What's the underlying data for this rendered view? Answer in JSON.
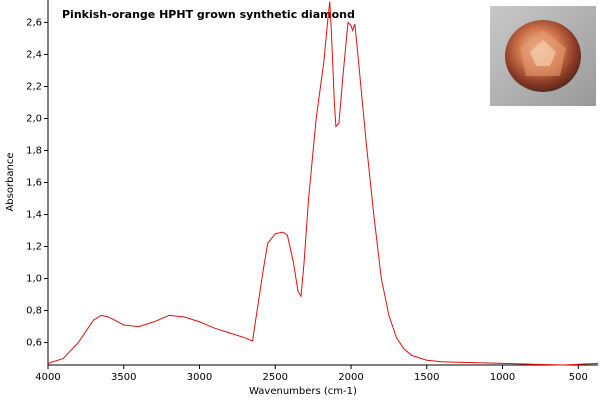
{
  "chart_data": {
    "type": "line",
    "title": "Pinkish-orange HPHT grown synthetic diamond",
    "xlabel": "Wavenumbers (cm-1)",
    "ylabel": "Absorbance",
    "x": [
      4000,
      3900,
      3800,
      3700,
      3650,
      3600,
      3500,
      3400,
      3300,
      3200,
      3100,
      3000,
      2900,
      2800,
      2700,
      2650,
      2620,
      2580,
      2550,
      2500,
      2450,
      2420,
      2380,
      2350,
      2330,
      2310,
      2280,
      2230,
      2180,
      2150,
      2140,
      2130,
      2110,
      2100,
      2080,
      2050,
      2020,
      2000,
      1990,
      1975,
      1960,
      1930,
      1900,
      1850,
      1800,
      1750,
      1700,
      1650,
      1600,
      1500,
      1400,
      1200,
      1000,
      800,
      600,
      370
    ],
    "series": [
      {
        "name": "Absorbance",
        "color": "#e01010",
        "values": [
          0.47,
          0.5,
          0.6,
          0.74,
          0.77,
          0.76,
          0.71,
          0.7,
          0.73,
          0.77,
          0.76,
          0.73,
          0.69,
          0.66,
          0.63,
          0.61,
          0.8,
          1.05,
          1.22,
          1.28,
          1.29,
          1.27,
          1.1,
          0.92,
          0.89,
          1.1,
          1.5,
          2.0,
          2.35,
          2.65,
          2.73,
          2.55,
          2.1,
          1.95,
          1.97,
          2.3,
          2.6,
          2.58,
          2.55,
          2.59,
          2.45,
          2.15,
          1.85,
          1.4,
          1.0,
          0.77,
          0.63,
          0.56,
          0.52,
          0.49,
          0.48,
          0.475,
          0.47,
          0.465,
          0.46,
          0.47
        ]
      }
    ],
    "xlim": [
      4000,
      370
    ],
    "xticks": [
      4000,
      3500,
      3000,
      2500,
      2000,
      1500,
      1000,
      500
    ],
    "ylim": [
      0.46,
      2.74
    ],
    "yticks": [
      {
        "value": 0.6,
        "label": "0,6"
      },
      {
        "value": 0.8,
        "label": "0,8"
      },
      {
        "value": 1.0,
        "label": "1,0"
      },
      {
        "value": 1.2,
        "label": "1,2"
      },
      {
        "value": 1.4,
        "label": "1,4"
      },
      {
        "value": 1.6,
        "label": "1,6"
      },
      {
        "value": 1.8,
        "label": "1,8"
      },
      {
        "value": 2.0,
        "label": "2,0"
      },
      {
        "value": 2.2,
        "label": "2,2"
      },
      {
        "value": 2.4,
        "label": "2,4"
      },
      {
        "value": 2.6,
        "label": "2,6"
      }
    ],
    "grid": false
  }
}
